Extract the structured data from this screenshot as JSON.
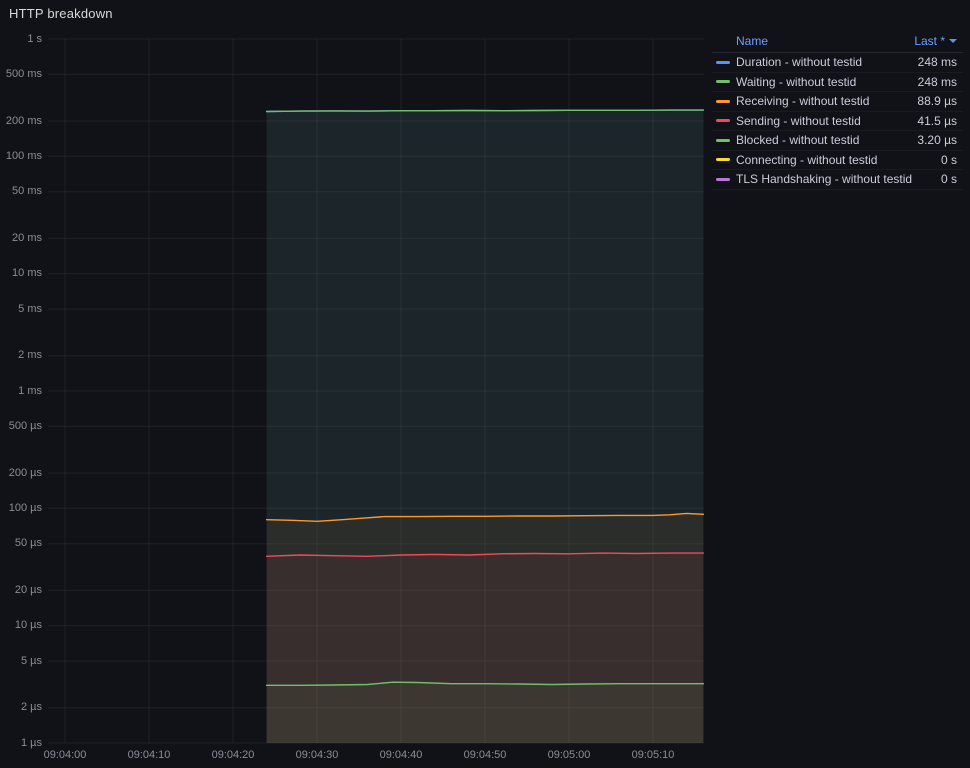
{
  "panel": {
    "title": "HTTP breakdown"
  },
  "colors": {
    "background": "#111217",
    "text": "#CCCCDC",
    "text_muted": "rgba(204,204,220,0.65)",
    "grid": "rgba(204,204,220,0.08)",
    "header_link": "#6E9FFF"
  },
  "legend": {
    "name_header": "Name",
    "last_header": "Last *",
    "items": [
      {
        "name": "Duration - without testid",
        "last": "248 ms",
        "color": "#5794F2"
      },
      {
        "name": "Waiting - without testid",
        "last": "248 ms",
        "color": "#73BF69"
      },
      {
        "name": "Receiving - without testid",
        "last": "88.9 µs",
        "color": "#FF9830"
      },
      {
        "name": "Sending - without testid",
        "last": "41.5 µs",
        "color": "#F2495C"
      },
      {
        "name": "Blocked - without testid",
        "last": "3.20 µs",
        "color": "#73BF69"
      },
      {
        "name": "Connecting - without testid",
        "last": "0 s",
        "color": "#FADE2A"
      },
      {
        "name": "TLS Handshaking - without testid",
        "last": "0 s",
        "color": "#B877D9"
      }
    ]
  },
  "chart_data": {
    "type": "line",
    "title": "HTTP breakdown",
    "y_scale": "log10",
    "y_unit": "seconds",
    "ylim_seconds": [
      1e-06,
      1
    ],
    "x_window": [
      "09:04:00",
      "09:05:16"
    ],
    "grid": true,
    "legend_position": "top-right",
    "y_ticks": [
      {
        "label": "1 s",
        "v": 1
      },
      {
        "label": "500 ms",
        "v": 0.5
      },
      {
        "label": "200 ms",
        "v": 0.2
      },
      {
        "label": "100 ms",
        "v": 0.1
      },
      {
        "label": "50 ms",
        "v": 0.05
      },
      {
        "label": "20 ms",
        "v": 0.02
      },
      {
        "label": "10 ms",
        "v": 0.01
      },
      {
        "label": "5 ms",
        "v": 0.005
      },
      {
        "label": "2 ms",
        "v": 0.002
      },
      {
        "label": "1 ms",
        "v": 0.001
      },
      {
        "label": "500 µs",
        "v": 0.0005
      },
      {
        "label": "200 µs",
        "v": 0.0002
      },
      {
        "label": "100 µs",
        "v": 0.0001
      },
      {
        "label": "50 µs",
        "v": 5e-05
      },
      {
        "label": "20 µs",
        "v": 2e-05
      },
      {
        "label": "10 µs",
        "v": 1e-05
      },
      {
        "label": "5 µs",
        "v": 5e-06
      },
      {
        "label": "2 µs",
        "v": 2e-06
      },
      {
        "label": "1 µs",
        "v": 1e-06
      }
    ],
    "x_ticks": [
      {
        "label": "09:04:00",
        "t": 0
      },
      {
        "label": "09:04:10",
        "t": 10
      },
      {
        "label": "09:04:20",
        "t": 20
      },
      {
        "label": "09:04:30",
        "t": 30
      },
      {
        "label": "09:04:40",
        "t": 40
      },
      {
        "label": "09:04:50",
        "t": 50
      },
      {
        "label": "09:05:00",
        "t": 60
      },
      {
        "label": "09:05:10",
        "t": 70
      }
    ],
    "series": [
      {
        "name": "Duration - without testid",
        "color": "#5794F2",
        "last_value_seconds": 0.248,
        "points": [
          [
            24,
            0.241
          ],
          [
            28,
            0.243
          ],
          [
            32,
            0.244
          ],
          [
            36,
            0.243
          ],
          [
            40,
            0.245
          ],
          [
            44,
            0.245
          ],
          [
            48,
            0.246
          ],
          [
            52,
            0.245
          ],
          [
            56,
            0.246
          ],
          [
            60,
            0.247
          ],
          [
            64,
            0.247
          ],
          [
            68,
            0.247
          ],
          [
            72,
            0.248
          ],
          [
            76,
            0.248
          ]
        ]
      },
      {
        "name": "Waiting - without testid",
        "color": "#73BF69",
        "last_value_seconds": 0.248,
        "points": [
          [
            24,
            0.241
          ],
          [
            28,
            0.243
          ],
          [
            32,
            0.244
          ],
          [
            36,
            0.243
          ],
          [
            40,
            0.245
          ],
          [
            44,
            0.245
          ],
          [
            48,
            0.246
          ],
          [
            52,
            0.245
          ],
          [
            56,
            0.246
          ],
          [
            60,
            0.247
          ],
          [
            64,
            0.247
          ],
          [
            68,
            0.247
          ],
          [
            72,
            0.248
          ],
          [
            76,
            0.248
          ]
        ]
      },
      {
        "name": "Receiving - without testid",
        "color": "#FF9830",
        "last_value_seconds": 8.89e-05,
        "points": [
          [
            24,
            8e-05
          ],
          [
            27,
            7.9e-05
          ],
          [
            30,
            7.75e-05
          ],
          [
            33,
            8e-05
          ],
          [
            36,
            8.3e-05
          ],
          [
            38,
            8.5e-05
          ],
          [
            42,
            8.5e-05
          ],
          [
            46,
            8.55e-05
          ],
          [
            50,
            8.55e-05
          ],
          [
            54,
            8.6e-05
          ],
          [
            58,
            8.6e-05
          ],
          [
            62,
            8.65e-05
          ],
          [
            66,
            8.7e-05
          ],
          [
            70,
            8.7e-05
          ],
          [
            72,
            8.8e-05
          ],
          [
            74,
            9.05e-05
          ],
          [
            76,
            8.89e-05
          ]
        ]
      },
      {
        "name": "Sending - without testid",
        "color": "#F2495C",
        "last_value_seconds": 4.15e-05,
        "points": [
          [
            24,
            3.9e-05
          ],
          [
            28,
            4e-05
          ],
          [
            32,
            3.95e-05
          ],
          [
            36,
            3.9e-05
          ],
          [
            40,
            4e-05
          ],
          [
            44,
            4.05e-05
          ],
          [
            48,
            4e-05
          ],
          [
            52,
            4.1e-05
          ],
          [
            56,
            4.12e-05
          ],
          [
            60,
            4.1e-05
          ],
          [
            64,
            4.15e-05
          ],
          [
            68,
            4.12e-05
          ],
          [
            72,
            4.15e-05
          ],
          [
            76,
            4.15e-05
          ]
        ]
      },
      {
        "name": "Blocked - without testid",
        "color": "#73BF69",
        "last_value_seconds": 3.2e-06,
        "points": [
          [
            24,
            3.1e-06
          ],
          [
            28,
            3.1e-06
          ],
          [
            32,
            3.12e-06
          ],
          [
            36,
            3.15e-06
          ],
          [
            39,
            3.3e-06
          ],
          [
            42,
            3.28e-06
          ],
          [
            46,
            3.2e-06
          ],
          [
            50,
            3.2e-06
          ],
          [
            54,
            3.18e-06
          ],
          [
            58,
            3.15e-06
          ],
          [
            62,
            3.18e-06
          ],
          [
            66,
            3.2e-06
          ],
          [
            70,
            3.2e-06
          ],
          [
            76,
            3.2e-06
          ]
        ]
      },
      {
        "name": "Connecting - without testid",
        "color": "#FADE2A",
        "last_value_seconds": 0,
        "points": []
      },
      {
        "name": "TLS Handshaking - without testid",
        "color": "#B877D9",
        "last_value_seconds": 0,
        "points": []
      }
    ]
  }
}
